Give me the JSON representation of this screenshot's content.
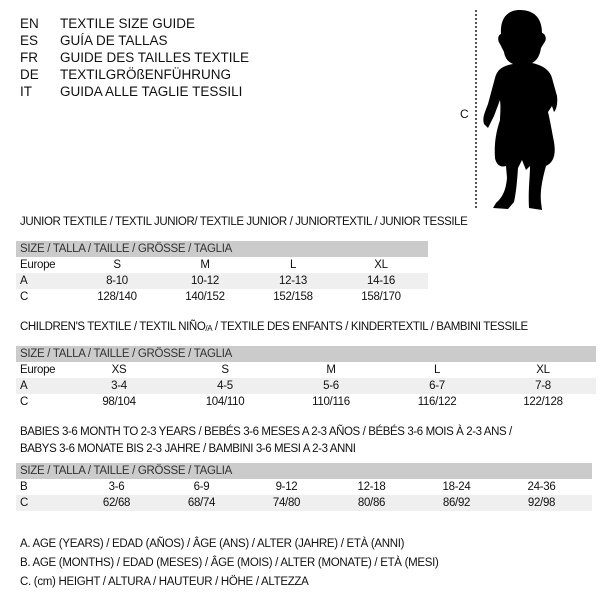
{
  "languages": [
    {
      "code": "EN",
      "title": "TEXTILE SIZE GUIDE"
    },
    {
      "code": "ES",
      "title": "GUÍA DE TALLAS"
    },
    {
      "code": "FR",
      "title": "GUIDE DES TAILLES TEXTILE"
    },
    {
      "code": "DE",
      "title": "TEXTILGRÖßENFÜHRUNG"
    },
    {
      "code": "IT",
      "title": "GUIDA ALLE TAGLIE TESSILI"
    }
  ],
  "figure": {
    "measure_label": "C"
  },
  "junior": {
    "title": "JUNIOR TEXTILE / TEXTIL JUNIOR/ TEXTILE JUNIOR / JUNIORTEXTIL / JUNIOR TESSILE",
    "header": "SIZE / TALLA / TAILLE / GRÖSSE / TAGLIA",
    "rows": [
      {
        "label": "Europe",
        "values": [
          "S",
          "M",
          "L",
          "XL"
        ]
      },
      {
        "label": "A",
        "values": [
          "8-10",
          "10-12",
          "12-13",
          "14-16"
        ]
      },
      {
        "label": "C",
        "values": [
          "128/140",
          "140/152",
          "152/158",
          "158/170"
        ]
      }
    ]
  },
  "children": {
    "title_pre": "CHILDREN'S TEXTILE / TEXTIL NIÑO",
    "title_sub": "/A",
    "title_post": " / TEXTILE DES ENFANTS / KINDERTEXTIL / BAMBINI TESSILE",
    "header": "SIZE / TALLA / TAILLE / GRÖSSE / TAGLIA",
    "rows": [
      {
        "label": "Europe",
        "values": [
          "XS",
          "S",
          "M",
          "L",
          "XL"
        ]
      },
      {
        "label": "A",
        "values": [
          "3-4",
          "4-5",
          "5-6",
          "6-7",
          "7-8"
        ]
      },
      {
        "label": "C",
        "values": [
          "98/104",
          "104/110",
          "110/116",
          "116/122",
          "122/128"
        ]
      }
    ]
  },
  "babies": {
    "title_line1": "BABIES 3-6 MONTH TO 2-3 YEARS / BEBÉS 3-6 MESES A 2-3 AÑOS / BÉBÉS 3-6 MOIS À 2-3 ANS /",
    "title_line2": "BABYS 3-6 MONATE BIS 2-3 JAHRE / BAMBINI 3-6 MESI A 2-3 ANNI",
    "header": "SIZE / TALLA / TAILLE / GRÖSSE / TAGLIA",
    "rows": [
      {
        "label": "B",
        "values": [
          "3-6",
          "6-9",
          "9-12",
          "12-18",
          "18-24",
          "24-36"
        ]
      },
      {
        "label": "C",
        "values": [
          "62/68",
          "68/74",
          "74/80",
          "80/86",
          "86/92",
          "92/98"
        ]
      }
    ]
  },
  "legend": [
    "A. AGE (YEARS) / EDAD (AÑOS) / ÂGE (ANS) / ALTER (JAHRE) / ETÀ (ANNI)",
    "B. AGE (MONTHS) / EDAD (MESES) / ÂGE (MOIS) / ALTER (MONATE) / ETÀ (MESI)",
    "C. (cm) HEIGHT / ALTURA / HAUTEUR / HÖHE / ALTEZZA"
  ]
}
